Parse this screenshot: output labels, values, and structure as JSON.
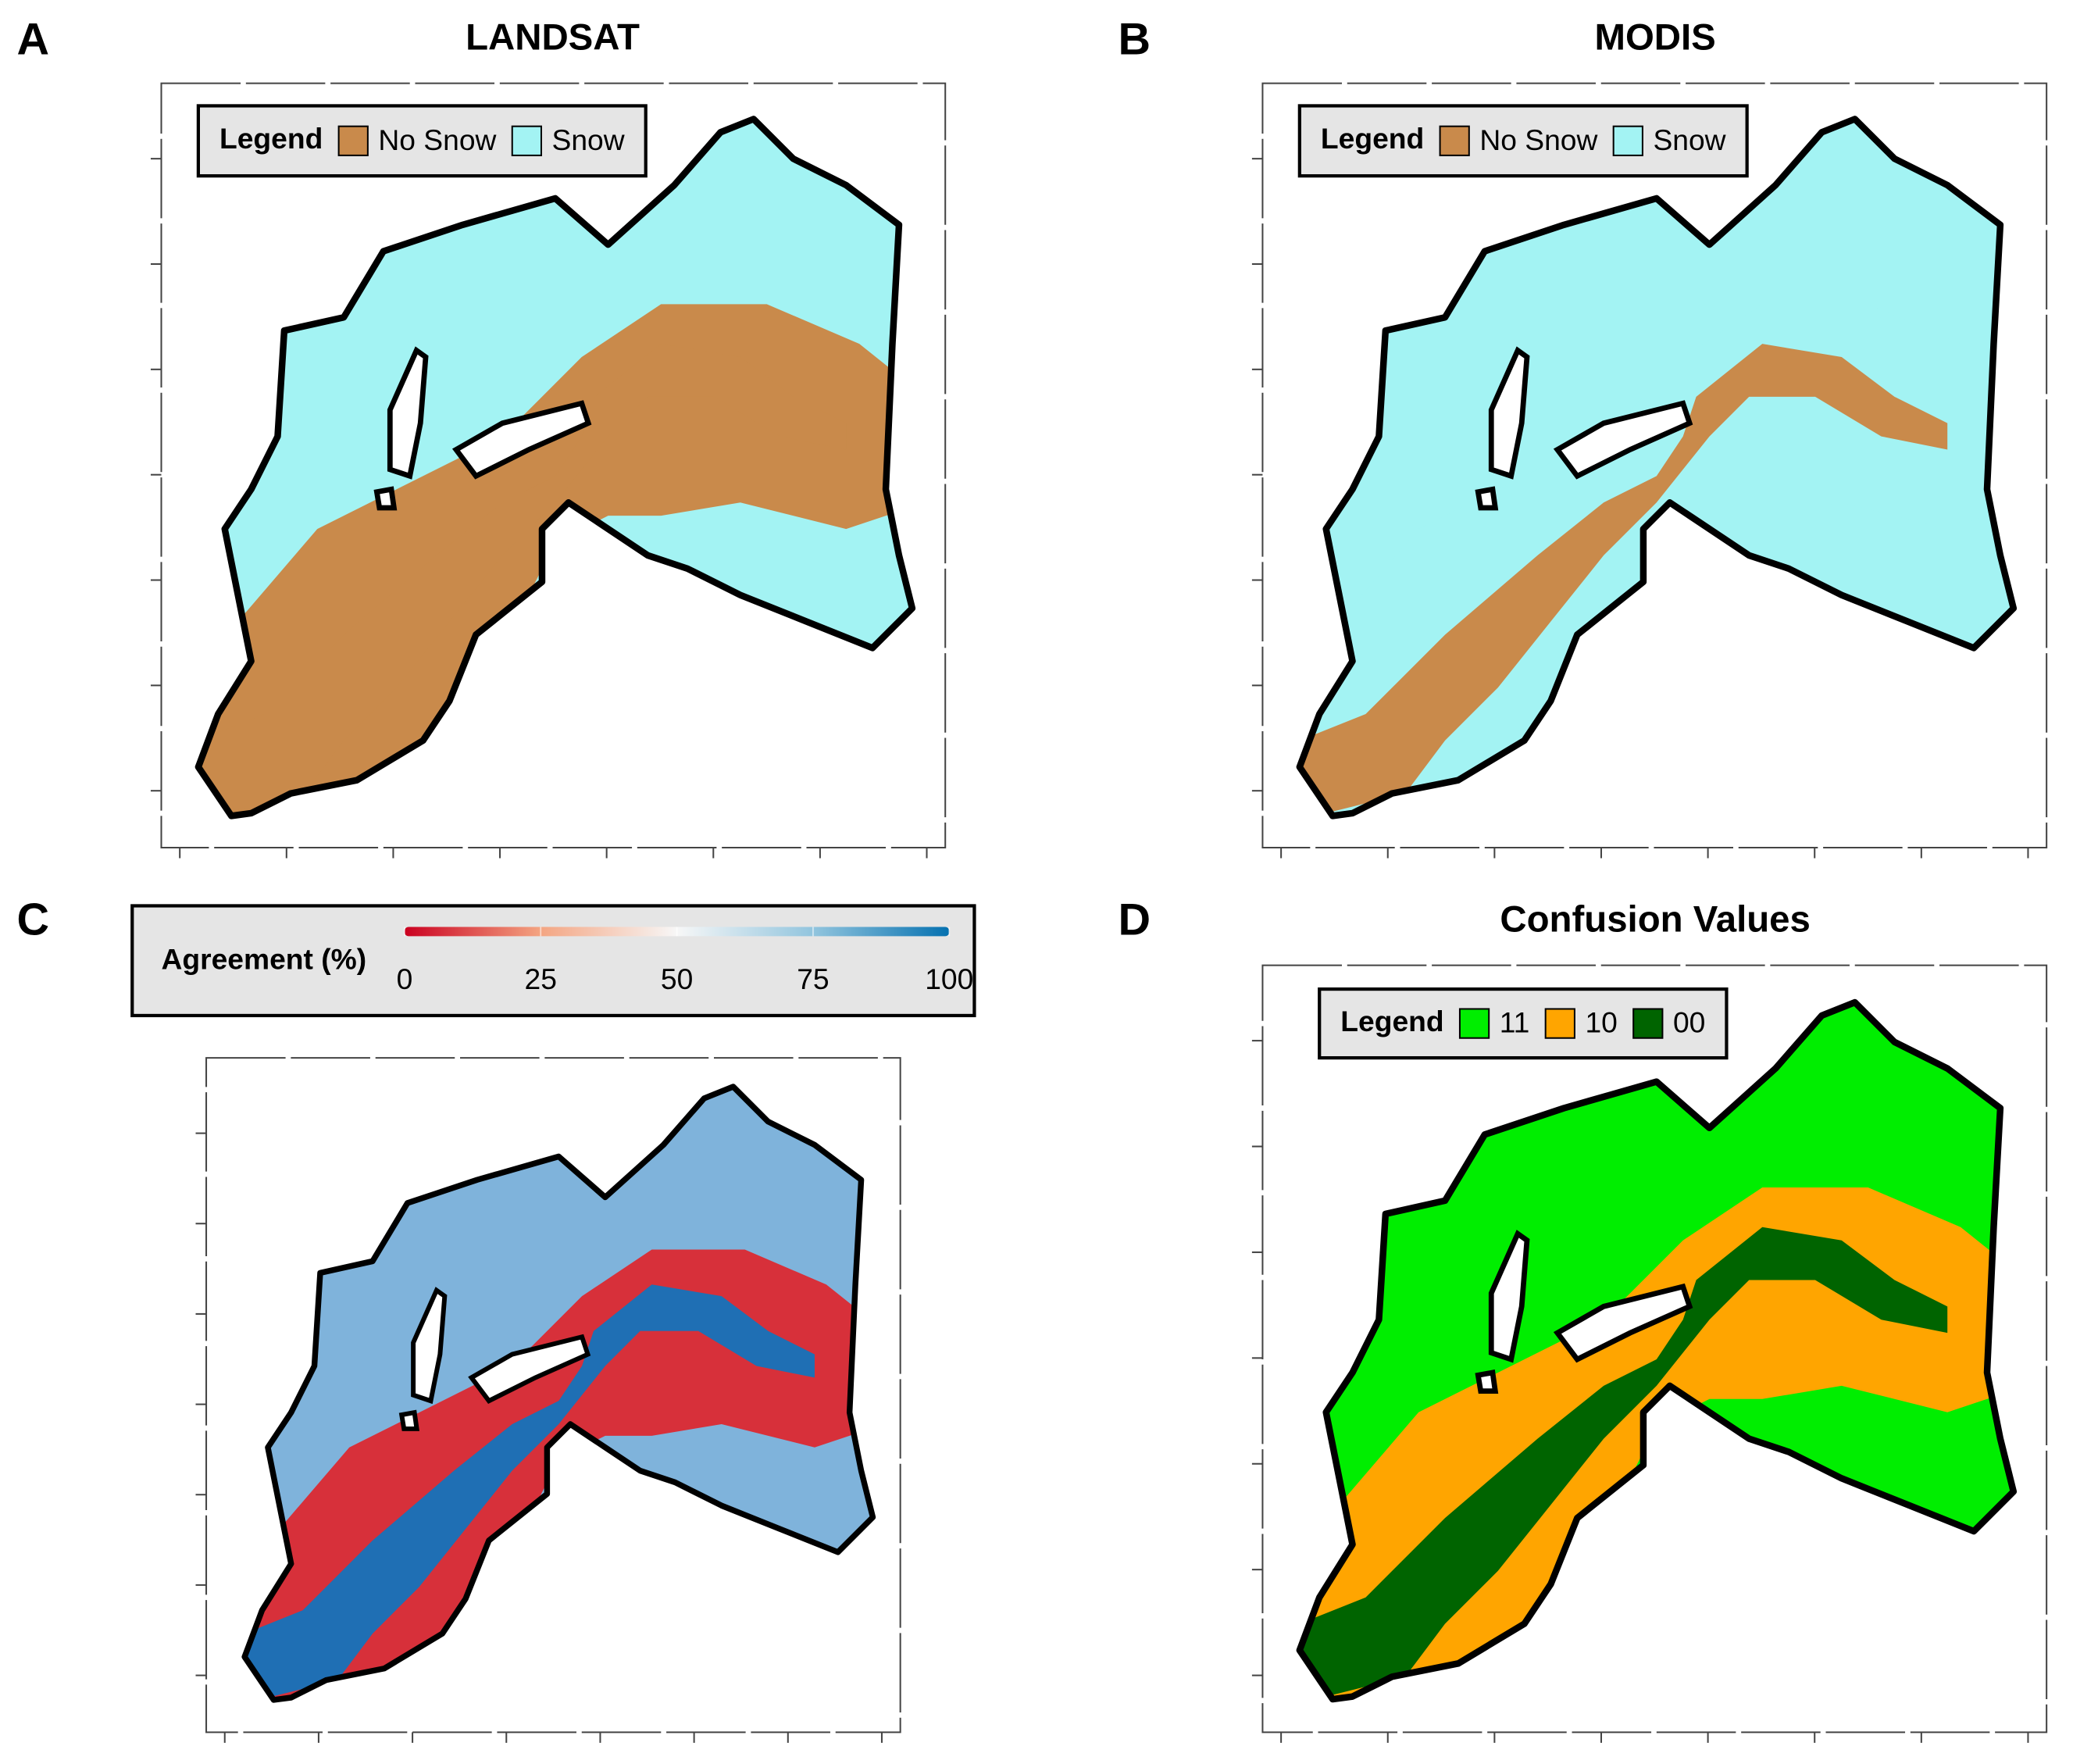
{
  "panels": [
    {
      "label": "A",
      "title": "LANDSAT",
      "legend": {
        "title": "Legend",
        "items": [
          {
            "name": "No Snow",
            "color": "#c98a4b"
          },
          {
            "name": "Snow",
            "color": "#a3f3f3"
          }
        ]
      }
    },
    {
      "label": "B",
      "title": "MODIS",
      "legend": {
        "title": "Legend",
        "items": [
          {
            "name": "No Snow",
            "color": "#c98a4b"
          },
          {
            "name": "Snow",
            "color": "#a3f3f3"
          }
        ]
      }
    },
    {
      "label": "C",
      "colorbar": {
        "title": "Agreement (%)",
        "ticks": [
          0,
          25,
          50,
          75,
          100
        ],
        "colors": [
          "#ca0020",
          "#f4a582",
          "#f7f7f7",
          "#92c5de",
          "#0571b0"
        ]
      }
    },
    {
      "label": "D",
      "title": "Confusion Values",
      "legend": {
        "title": "Legend",
        "items": [
          {
            "name": "11",
            "color": "#00ee00"
          },
          {
            "name": "10",
            "color": "#ffa500"
          },
          {
            "name": "00",
            "color": "#006400"
          }
        ]
      }
    }
  ]
}
